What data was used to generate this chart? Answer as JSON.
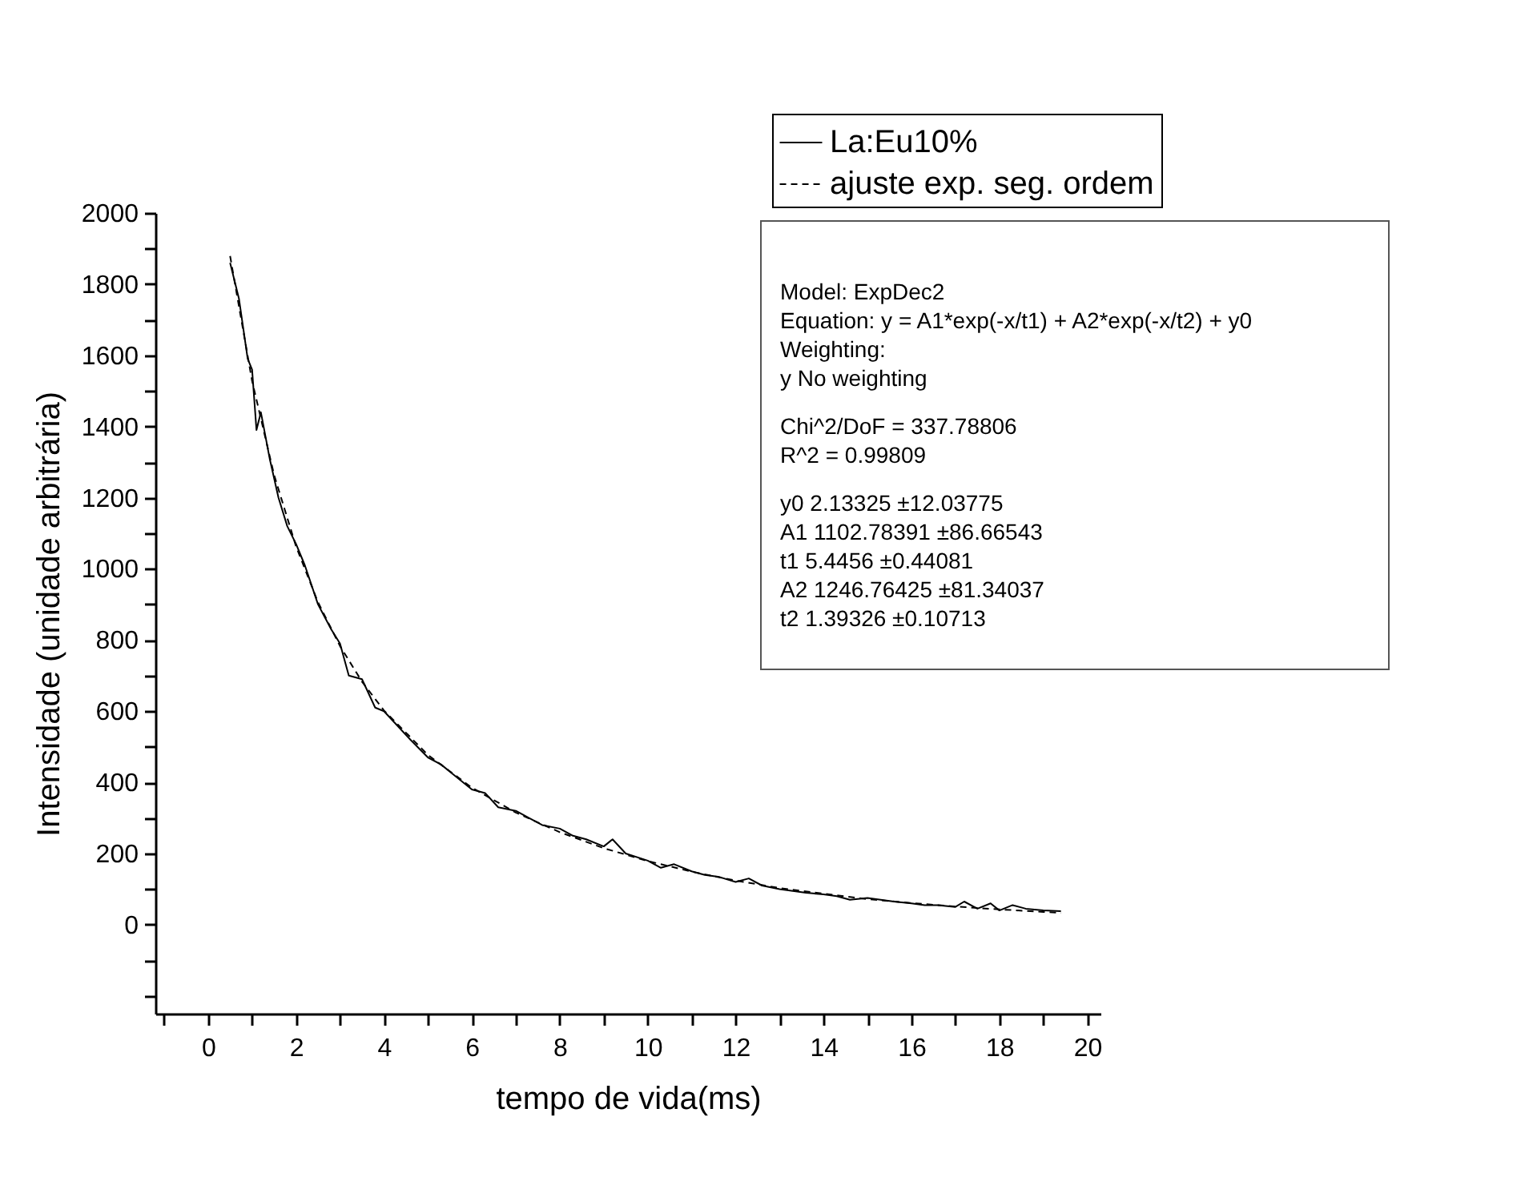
{
  "chart_data": {
    "type": "line",
    "xlabel": "tempo de vida(ms)",
    "ylabel": "Intensidade (unidade arbitrária)",
    "xlim": [
      -1.2,
      20.3
    ],
    "ylim": [
      -250,
      2000
    ],
    "xticks": [
      {
        "value": -1,
        "label": null
      },
      0,
      {
        "value": 1,
        "label": null
      },
      2,
      {
        "value": 3,
        "label": null
      },
      4,
      {
        "value": 5,
        "label": null
      },
      6,
      {
        "value": 7,
        "label": null
      },
      8,
      {
        "value": 9,
        "label": null
      },
      10,
      {
        "value": 11,
        "label": null
      },
      12,
      {
        "value": 13,
        "label": null
      },
      14,
      {
        "value": 15,
        "label": null
      },
      16,
      {
        "value": 17,
        "label": null
      },
      18,
      {
        "value": 19,
        "label": null
      },
      20
    ],
    "yticks": [
      {
        "value": -200,
        "label": null
      },
      {
        "value": -100,
        "label": null
      },
      0,
      {
        "value": 100,
        "label": null
      },
      200,
      {
        "value": 300,
        "label": null
      },
      400,
      {
        "value": 500,
        "label": null
      },
      600,
      {
        "value": 700,
        "label": null
      },
      800,
      {
        "value": 900,
        "label": null
      },
      1000,
      {
        "value": 1100,
        "label": null
      },
      1200,
      {
        "value": 1300,
        "label": null
      },
      1400,
      {
        "value": 1500,
        "label": null
      },
      1600,
      {
        "value": 1700,
        "label": null
      },
      1800,
      {
        "value": 1900,
        "label": null
      },
      2000
    ],
    "grid": false,
    "legend": "top right",
    "marker": "none",
    "series": [
      {
        "name": "La:Eu10%",
        "color": "#000000",
        "line_style": "solid",
        "x": [
          0.5,
          0.7,
          0.9,
          1.0,
          1.1,
          1.2,
          1.4,
          1.6,
          1.8,
          2.0,
          2.2,
          2.5,
          2.8,
          3.0,
          3.2,
          3.5,
          3.8,
          4.0,
          4.3,
          4.6,
          5.0,
          5.3,
          5.6,
          6.0,
          6.3,
          6.6,
          7.0,
          7.3,
          7.6,
          8.0,
          8.3,
          8.6,
          9.0,
          9.2,
          9.5,
          10.0,
          10.3,
          10.6,
          11.0,
          11.3,
          11.6,
          12.0,
          12.3,
          12.6,
          13.0,
          13.3,
          13.6,
          14.0,
          14.3,
          14.6,
          15.0,
          15.3,
          15.6,
          16.0,
          16.3,
          16.6,
          17.0,
          17.2,
          17.5,
          17.8,
          18.0,
          18.3,
          18.6,
          19.0,
          19.4
        ],
        "values": [
          1860,
          1760,
          1590,
          1560,
          1390,
          1440,
          1310,
          1200,
          1120,
          1070,
          1010,
          900,
          830,
          790,
          700,
          690,
          610,
          600,
          560,
          520,
          470,
          450,
          420,
          380,
          370,
          330,
          320,
          300,
          280,
          270,
          250,
          240,
          220,
          240,
          200,
          180,
          160,
          170,
          150,
          140,
          135,
          120,
          130,
          110,
          100,
          95,
          90,
          85,
          80,
          70,
          75,
          70,
          65,
          60,
          55,
          55,
          50,
          65,
          45,
          60,
          40,
          55,
          45,
          40,
          38
        ]
      },
      {
        "name": "ajuste exp. seg. ordem",
        "color": "#000000",
        "line_style": "dashed",
        "x": [
          0.5,
          1.0,
          1.5,
          2.0,
          2.5,
          3.0,
          3.5,
          4.0,
          5.0,
          6.0,
          7.0,
          8.0,
          9.0,
          10.0,
          11.0,
          12.0,
          13.0,
          14.0,
          15.0,
          16.0,
          17.0,
          18.0,
          19.0,
          19.4
        ],
        "values": [
          1879,
          1528,
          1264,
          1063,
          906,
          783,
          683,
          602,
          477,
          385,
          315,
          260,
          215,
          179,
          149,
          124,
          103,
          87,
          72,
          61,
          51,
          43,
          36,
          33
        ]
      }
    ],
    "annotations": [
      "Model: ExpDec2",
      "Equation: y = A1*exp(-x/t1) + A2*exp(-x/t2) + y0",
      "Weighting:",
      "y          No weighting",
      "Chi^2/DoF        = 337.78806",
      "R^2     =  0.99809",
      "y0        2.13325          ±12.03775",
      "A1        1102.78391      ±86.66543",
      "t1         5.4456  ±0.44081",
      "A2        1246.76425      ±81.34037",
      "t2         1.39326          ±0.10713"
    ]
  }
}
